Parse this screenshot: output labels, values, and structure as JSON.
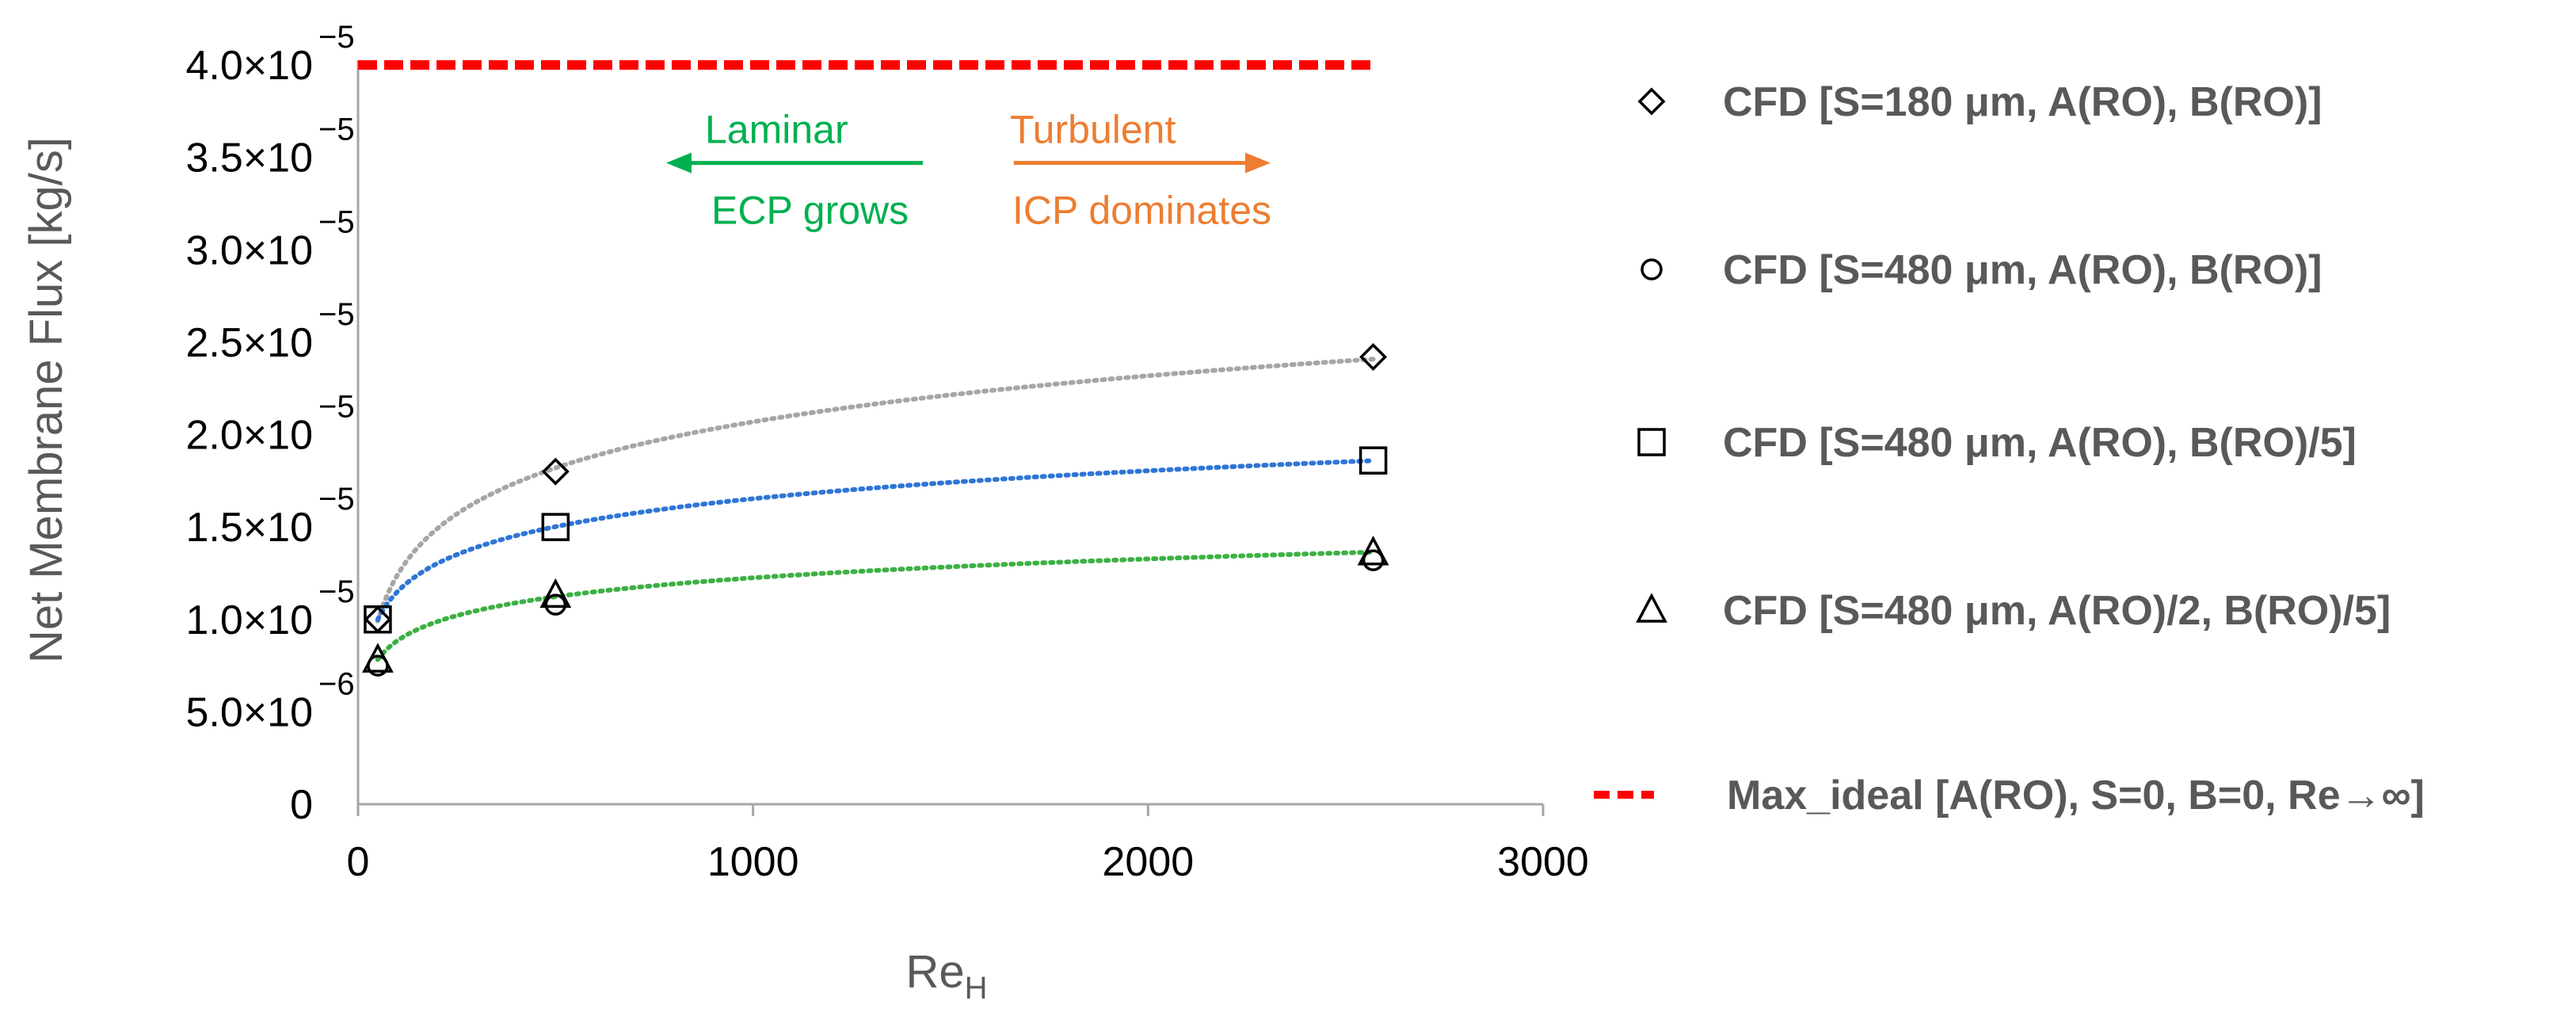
{
  "chart_data": {
    "type": "scatter",
    "xlabel": "Re",
    "xlabel_sub": "H",
    "ylabel": "Net Membrane Flux [kg/s]",
    "xlim": [
      0,
      3000
    ],
    "ylim": [
      0,
      4e-05
    ],
    "x_ticks": [
      {
        "value": 0,
        "label": "0"
      },
      {
        "value": 1000,
        "label": "1000"
      },
      {
        "value": 2000,
        "label": "2000"
      },
      {
        "value": 3000,
        "label": "3000"
      }
    ],
    "y_ticks": [
      {
        "value": 0,
        "mantissa": "0",
        "exponent": ""
      },
      {
        "value": 5e-06,
        "mantissa": "5.0×10",
        "exponent": "−6"
      },
      {
        "value": 1e-05,
        "mantissa": "1.0×10",
        "exponent": "−5"
      },
      {
        "value": 1.5e-05,
        "mantissa": "1.5×10",
        "exponent": "−5"
      },
      {
        "value": 2e-05,
        "mantissa": "2.0×10",
        "exponent": "−5"
      },
      {
        "value": 2.5e-05,
        "mantissa": "2.5×10",
        "exponent": "−5"
      },
      {
        "value": 3e-05,
        "mantissa": "3.0×10",
        "exponent": "−5"
      },
      {
        "value": 3.5e-05,
        "mantissa": "3.5×10",
        "exponent": "−5"
      },
      {
        "value": 4e-05,
        "mantissa": "4.0×10",
        "exponent": "−5"
      }
    ],
    "series": [
      {
        "name": "CFD [S=180 μm, A(RO), B(RO)]",
        "marker": "diamond",
        "trend_color": "#a6a6a6",
        "x": [
          50,
          500,
          2570
        ],
        "y": [
          1e-05,
          1.8e-05,
          2.42e-05
        ]
      },
      {
        "name": "CFD [S=480 μm, A(RO), B(RO)]",
        "marker": "circle",
        "trend_color": "",
        "x": [
          50,
          500,
          2570
        ],
        "y": [
          7.5e-06,
          1.08e-05,
          1.32e-05
        ]
      },
      {
        "name": "CFD [S=480 μm, A(RO), B(RO)/5]",
        "marker": "square",
        "trend_color": "#2e75d6",
        "x": [
          50,
          500,
          2570
        ],
        "y": [
          1e-05,
          1.5e-05,
          1.86e-05
        ]
      },
      {
        "name": "CFD [S=480 μm, A(RO)/2, B(RO)/5]",
        "marker": "triangle",
        "trend_color": "#3cb043",
        "x": [
          50,
          500,
          2570
        ],
        "y": [
          7.8e-06,
          1.13e-05,
          1.36e-05
        ]
      },
      {
        "name": "Max_ideal [A(RO), S=0, B=0, Re→∞]",
        "marker": "dashed-line",
        "color": "#ff0000",
        "x": [
          0,
          2570
        ],
        "y": [
          4e-05,
          4e-05
        ]
      }
    ],
    "annotations": {
      "laminar": {
        "title": "Laminar",
        "subtitle": "ECP grows",
        "color": "#00b050",
        "x_from": 1430,
        "x_to": 780,
        "y": 3.47e-05
      },
      "turbulent": {
        "title": "Turbulent",
        "subtitle": "ICP dominates",
        "color": "#ed7d31",
        "x_from": 1660,
        "x_to": 2310,
        "y": 3.47e-05
      }
    },
    "legend_position": "right"
  }
}
